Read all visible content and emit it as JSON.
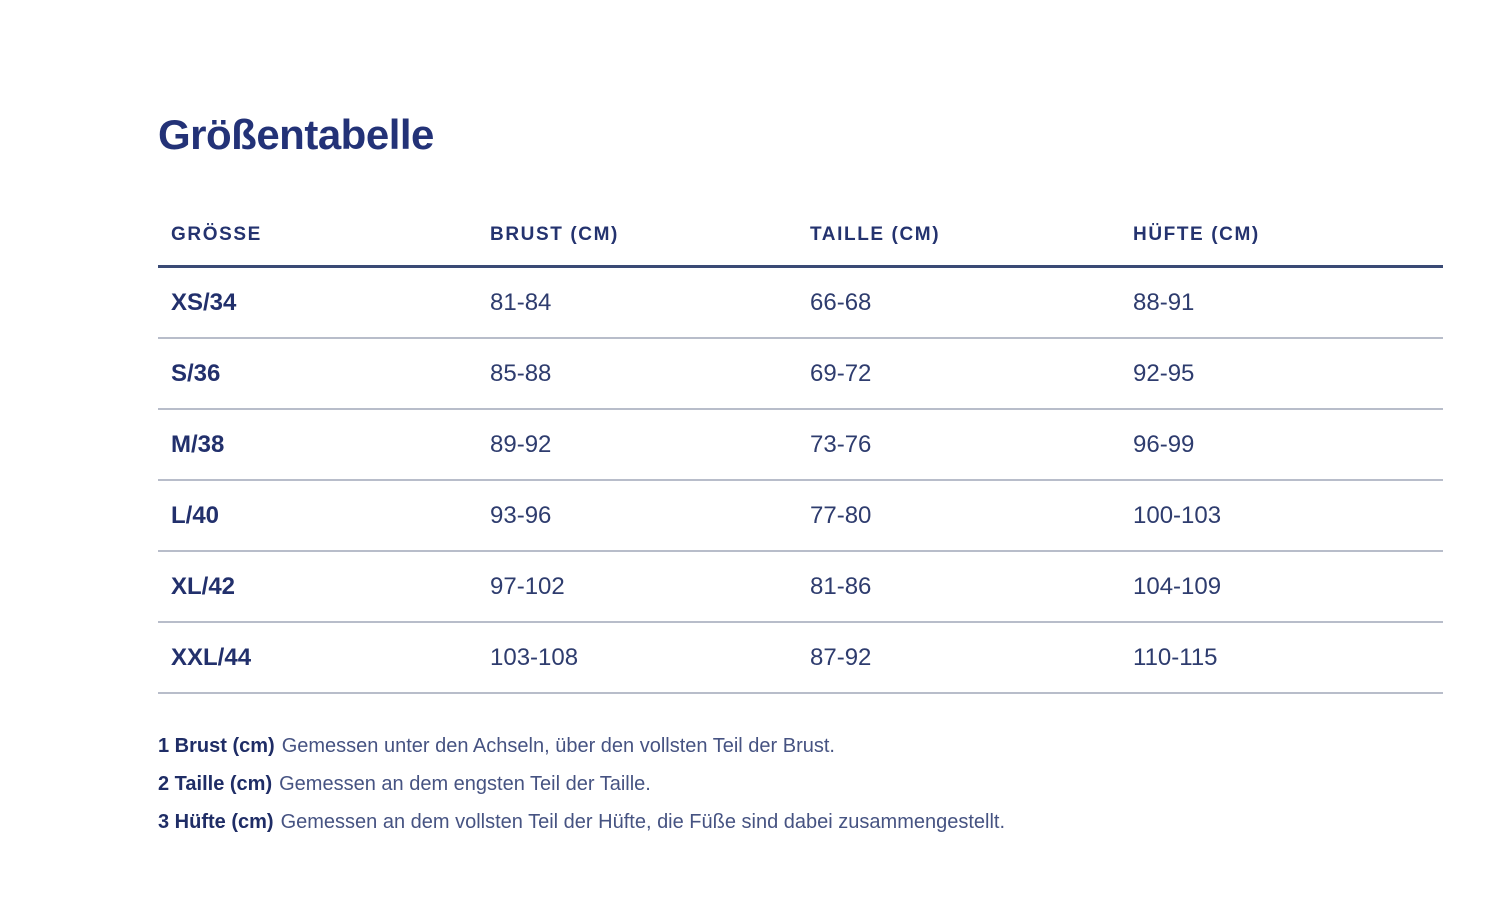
{
  "title": "Größentabelle",
  "table": {
    "columns": [
      {
        "label": "GRÖSSE"
      },
      {
        "label": "BRUST (CM)"
      },
      {
        "label": "TAILLE (CM)"
      },
      {
        "label": "HÜFTE (CM)"
      }
    ],
    "rows": [
      {
        "size": "XS/34",
        "brust": "81-84",
        "taille": "66-68",
        "huefte": "88-91"
      },
      {
        "size": "S/36",
        "brust": "85-88",
        "taille": "69-72",
        "huefte": "92-95"
      },
      {
        "size": "M/38",
        "brust": "89-92",
        "taille": "73-76",
        "huefte": "96-99"
      },
      {
        "size": "L/40",
        "brust": "93-96",
        "taille": "77-80",
        "huefte": "100-103"
      },
      {
        "size": "XL/42",
        "brust": "97-102",
        "taille": "81-86",
        "huefte": "104-109"
      },
      {
        "size": "XXL/44",
        "brust": "103-108",
        "taille": "87-92",
        "huefte": "110-115"
      }
    ]
  },
  "footnotes": [
    {
      "label": "1 Brust (cm)",
      "text": "Gemessen unter den Achseln, über den vollsten Teil der Brust."
    },
    {
      "label": "2 Taille (cm)",
      "text": "Gemessen an dem engsten Teil der Taille."
    },
    {
      "label": "3 Hüfte (cm)",
      "text": "Gemessen an dem vollsten Teil der Hüfte, die Füße sind dabei zusammengestellt."
    }
  ],
  "colors": {
    "text_title": "#233277",
    "text_body": "#2e3c6e",
    "text_footnote": "#465382",
    "header_rule": "#3a4a75",
    "row_rule": "#b8bdca",
    "background": "#ffffff"
  }
}
